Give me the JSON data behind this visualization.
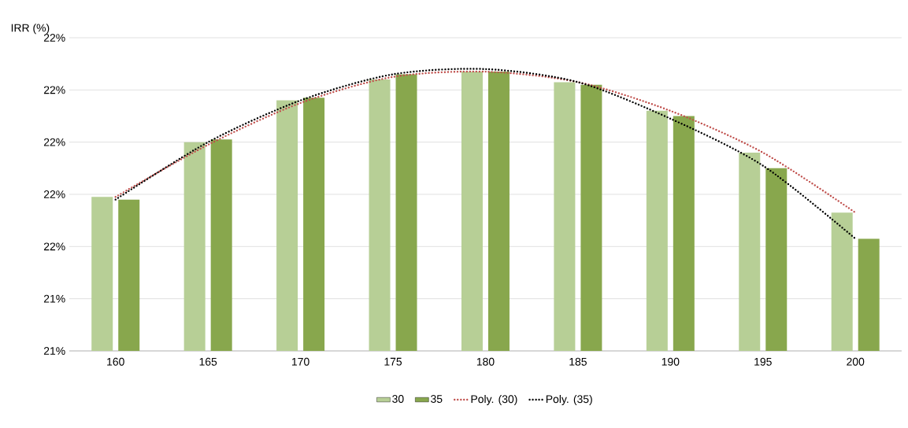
{
  "chart_data": {
    "type": "bar",
    "ylabel": "IRR (%)",
    "categories": [
      "160",
      "165",
      "170",
      "175",
      "180",
      "185",
      "190",
      "195",
      "200"
    ],
    "series": [
      {
        "name": "30",
        "color": "#b7cf96",
        "values": [
          21.79,
          22.0,
          22.16,
          22.24,
          22.27,
          22.23,
          22.12,
          21.96,
          21.73
        ]
      },
      {
        "name": "35",
        "color": "#88a74d",
        "values": [
          21.78,
          22.01,
          22.17,
          22.26,
          22.27,
          22.22,
          22.1,
          21.9,
          21.63
        ]
      },
      {
        "name": "Poly. (30)",
        "type": "line",
        "line_style": "dotted",
        "color": "#c0504d",
        "values": [
          21.79,
          21.99,
          22.15,
          22.25,
          22.27,
          22.23,
          22.12,
          21.96,
          21.73
        ]
      },
      {
        "name": "Poly. (35)",
        "type": "line",
        "line_style": "dotted",
        "color": "#000000",
        "values": [
          21.78,
          22.0,
          22.16,
          22.26,
          22.28,
          22.23,
          22.09,
          21.91,
          21.63
        ]
      }
    ],
    "ylim": [
      21.2,
      22.4
    ],
    "yticks": [
      {
        "value": 21.2,
        "label": "21%"
      },
      {
        "value": 21.4,
        "label": "21%"
      },
      {
        "value": 21.6,
        "label": "22%"
      },
      {
        "value": 21.8,
        "label": "22%"
      },
      {
        "value": 22.0,
        "label": "22%"
      },
      {
        "value": 22.2,
        "label": "22%"
      },
      {
        "value": 22.4,
        "label": "22%"
      }
    ],
    "grid": "y",
    "legend": "bottom",
    "marker": "none"
  }
}
